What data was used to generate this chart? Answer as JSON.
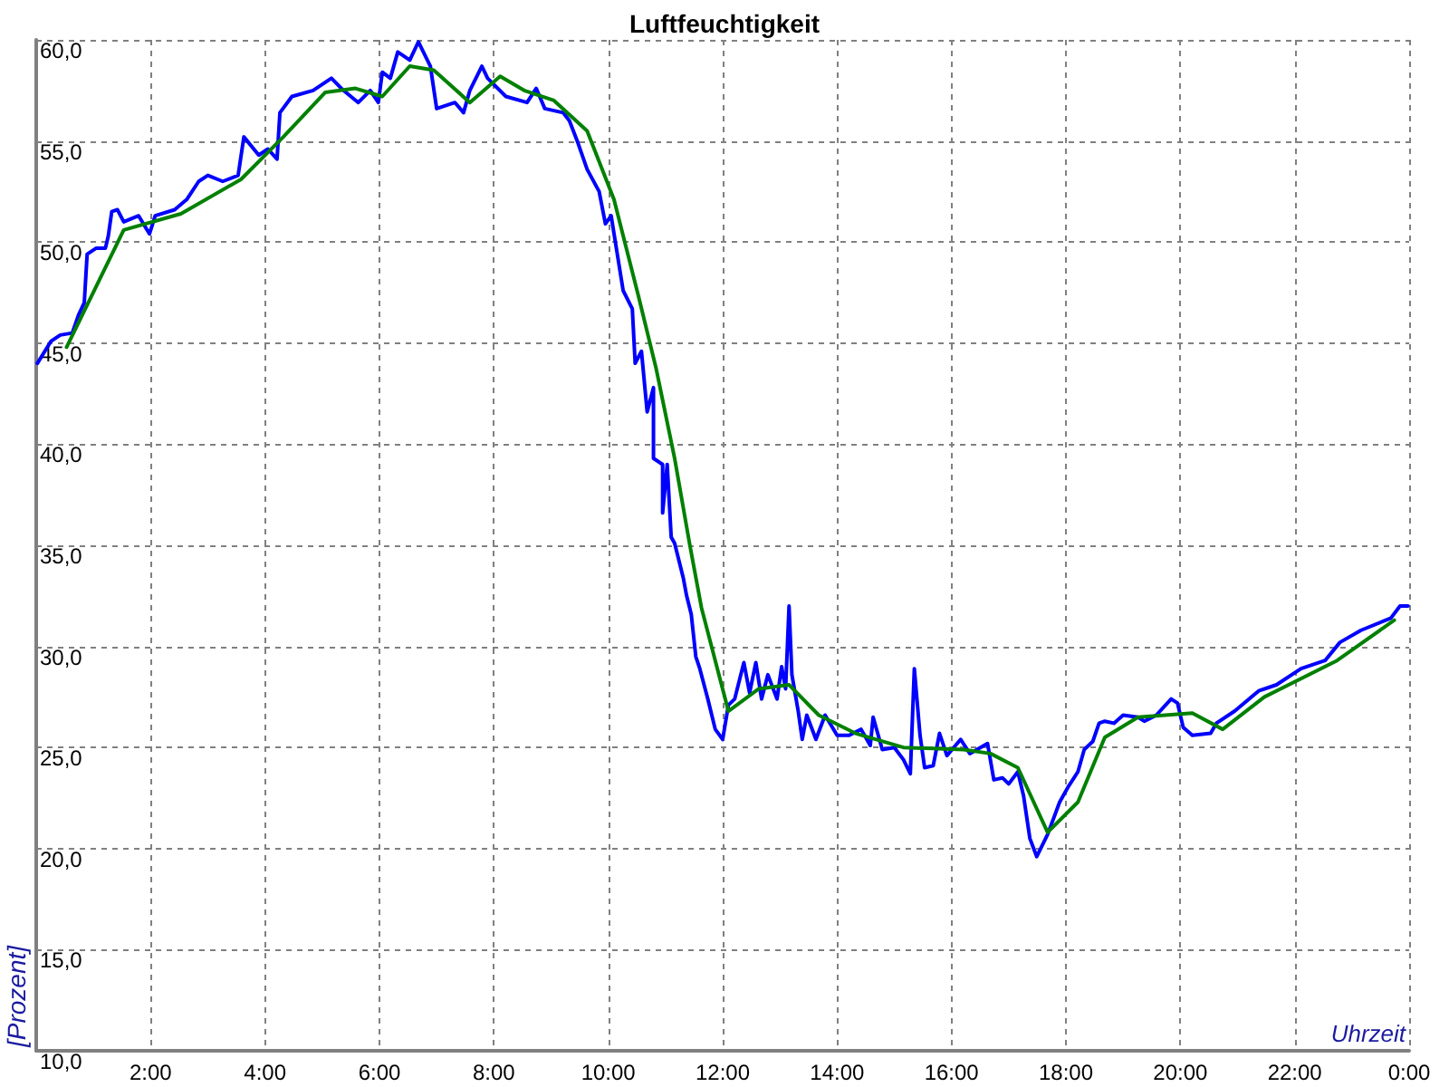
{
  "chart_data": {
    "type": "line",
    "title": "Luftfeuchtigkeit",
    "xlabel": "Uhrzeit",
    "ylabel": "[Prozent]",
    "xlim": [
      0,
      24
    ],
    "xticks": [
      {
        "value": 2,
        "label": "2:00"
      },
      {
        "value": 4,
        "label": "4:00"
      },
      {
        "value": 6,
        "label": "6:00"
      },
      {
        "value": 8,
        "label": "8:00"
      },
      {
        "value": 10,
        "label": "10:00"
      },
      {
        "value": 12,
        "label": "12:00"
      },
      {
        "value": 14,
        "label": "14:00"
      },
      {
        "value": 16,
        "label": "16:00"
      },
      {
        "value": 18,
        "label": "18:00"
      },
      {
        "value": 20,
        "label": "20:00"
      },
      {
        "value": 22,
        "label": "22:00"
      },
      {
        "value": 24,
        "label": "0:00"
      }
    ],
    "ylim": [
      10,
      60
    ],
    "yticks": [
      {
        "value": 10,
        "label": "10,0"
      },
      {
        "value": 15,
        "label": "15,0"
      },
      {
        "value": 20,
        "label": "20,0"
      },
      {
        "value": 25,
        "label": "25,0"
      },
      {
        "value": 30,
        "label": "30,0"
      },
      {
        "value": 35,
        "label": "35,0"
      },
      {
        "value": 40,
        "label": "40,0"
      },
      {
        "value": 45,
        "label": "45,0"
      },
      {
        "value": 50,
        "label": "50,0"
      },
      {
        "value": 55,
        "label": "55,0"
      },
      {
        "value": 60,
        "label": "60,0"
      }
    ],
    "grid": true,
    "marker": "none",
    "line_style": "solid",
    "series": [
      {
        "color": "#0000ff",
        "x": [
          0.02,
          0.26,
          0.42,
          0.63,
          0.74,
          0.84,
          0.89,
          1.05,
          1.21,
          1.26,
          1.32,
          1.42,
          1.53,
          1.79,
          1.98,
          2.08,
          2.42,
          2.63,
          2.84,
          3.0,
          3.26,
          3.53,
          3.63,
          3.89,
          4.05,
          4.21,
          4.26,
          4.47,
          4.84,
          5.16,
          5.37,
          5.63,
          5.84,
          5.98,
          6.05,
          6.19,
          6.32,
          6.53,
          6.68,
          6.89,
          7.0,
          7.32,
          7.47,
          7.58,
          7.79,
          7.89,
          8.21,
          8.58,
          8.74,
          8.89,
          9.21,
          9.32,
          9.47,
          9.63,
          9.84,
          9.95,
          10.05,
          10.26,
          10.42,
          10.47,
          10.58,
          10.68,
          10.79,
          10.79,
          10.95,
          10.95,
          11.03,
          11.1,
          11.16,
          11.31,
          11.37,
          11.45,
          11.53,
          11.6,
          11.74,
          11.87,
          12.0,
          12.1,
          12.21,
          12.37,
          12.47,
          12.58,
          12.68,
          12.79,
          12.95,
          13.03,
          13.1,
          13.16,
          13.21,
          13.32,
          13.39,
          13.47,
          13.63,
          13.79,
          14.0,
          14.21,
          14.42,
          14.58,
          14.63,
          14.79,
          15.0,
          15.16,
          15.28,
          15.35,
          15.45,
          15.53,
          15.68,
          15.79,
          15.92,
          16.16,
          16.32,
          16.63,
          16.74,
          16.89,
          17.0,
          17.16,
          17.26,
          17.37,
          17.49,
          17.68,
          17.89,
          18.05,
          18.21,
          18.32,
          18.47,
          18.58,
          18.68,
          18.84,
          19.0,
          19.26,
          19.37,
          19.58,
          19.84,
          19.95,
          20.05,
          20.21,
          20.53,
          20.63,
          20.95,
          21.37,
          21.68,
          22.11,
          22.53,
          22.79,
          23.16,
          23.68,
          23.84,
          23.98
        ],
        "values": [
          44.0,
          45.1,
          45.4,
          45.5,
          46.4,
          47.0,
          49.4,
          49.7,
          49.7,
          50.3,
          51.5,
          51.6,
          51.0,
          51.3,
          50.4,
          51.3,
          51.6,
          52.1,
          53.0,
          53.3,
          53.0,
          53.3,
          55.2,
          54.3,
          54.6,
          54.1,
          56.4,
          57.2,
          57.5,
          58.1,
          57.5,
          56.9,
          57.5,
          56.9,
          58.4,
          58.1,
          59.4,
          59.0,
          59.9,
          58.7,
          56.6,
          56.9,
          56.4,
          57.5,
          58.7,
          58.1,
          57.2,
          56.9,
          57.6,
          56.6,
          56.4,
          56.0,
          54.9,
          53.6,
          52.5,
          50.9,
          51.3,
          47.6,
          46.7,
          44.0,
          44.6,
          41.6,
          42.8,
          39.3,
          39.0,
          36.6,
          39.0,
          35.4,
          35.1,
          33.4,
          32.5,
          31.6,
          29.5,
          28.9,
          27.4,
          25.9,
          25.4,
          27.1,
          27.4,
          29.2,
          27.7,
          29.2,
          27.4,
          28.6,
          27.4,
          29.0,
          27.9,
          32.0,
          28.6,
          26.8,
          25.4,
          26.6,
          25.4,
          26.6,
          25.6,
          25.6,
          25.9,
          25.1,
          26.5,
          24.9,
          25.0,
          24.4,
          23.7,
          28.9,
          25.6,
          24.0,
          24.1,
          25.7,
          24.6,
          25.4,
          24.7,
          25.2,
          23.4,
          23.5,
          23.2,
          23.8,
          22.6,
          20.5,
          19.6,
          20.7,
          22.3,
          23.1,
          23.8,
          24.9,
          25.3,
          26.2,
          26.3,
          26.2,
          26.6,
          26.5,
          26.3,
          26.6,
          27.4,
          27.2,
          26.0,
          25.6,
          25.7,
          26.2,
          26.8,
          27.8,
          28.1,
          28.9,
          29.3,
          30.2,
          30.8,
          31.4,
          32.0,
          32.0
        ]
      },
      {
        "color": "#008000",
        "x": [
          0.53,
          1.53,
          2.53,
          3.58,
          4.32,
          5.05,
          5.58,
          6.05,
          6.53,
          6.95,
          7.58,
          8.11,
          8.53,
          9.05,
          9.63,
          10.1,
          10.53,
          10.84,
          11.16,
          11.42,
          11.63,
          12.1,
          12.63,
          13.16,
          13.68,
          14.32,
          15.16,
          16.21,
          16.68,
          17.16,
          17.68,
          18.21,
          18.68,
          19.26,
          20.21,
          20.74,
          21.47,
          22.74,
          23.74
        ],
        "values": [
          44.8,
          50.6,
          51.4,
          53.1,
          55.2,
          57.4,
          57.6,
          57.2,
          58.7,
          58.5,
          56.9,
          58.2,
          57.5,
          57.0,
          55.5,
          52.1,
          47.3,
          43.7,
          39.3,
          35.1,
          31.9,
          26.8,
          27.9,
          28.1,
          26.6,
          25.7,
          25.0,
          24.9,
          24.7,
          24.0,
          20.8,
          22.3,
          25.5,
          26.5,
          26.7,
          25.9,
          27.5,
          29.3,
          31.3
        ]
      }
    ]
  }
}
